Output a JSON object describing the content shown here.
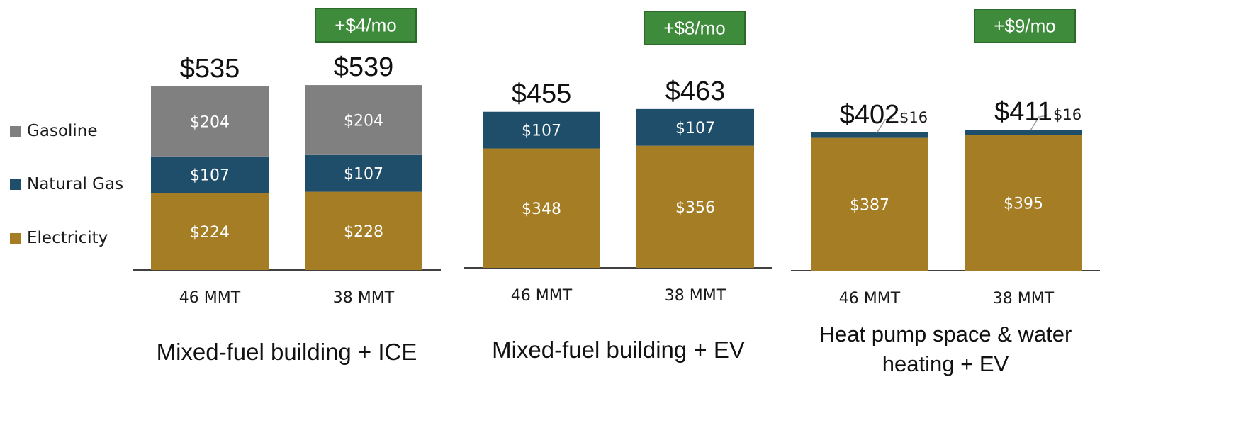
{
  "chart_data": {
    "type": "bar",
    "stacked": true,
    "legend": {
      "placement": "left",
      "items": [
        {
          "name": "Gasoline",
          "color": "#808080"
        },
        {
          "name": "Natural Gas",
          "color": "#1f4e6b"
        },
        {
          "name": "Electricity",
          "color": "#a57d24"
        }
      ]
    },
    "groups": [
      {
        "title": "Mixed-fuel building + ICE",
        "badge": "+$4/mo",
        "bars": [
          {
            "category": "46 MMT",
            "total_label": "$535",
            "segments": [
              {
                "series": "Electricity",
                "value": 224,
                "label": "$224"
              },
              {
                "series": "Natural Gas",
                "value": 107,
                "label": "$107"
              },
              {
                "series": "Gasoline",
                "value": 204,
                "label": "$204"
              }
            ]
          },
          {
            "category": "38 MMT",
            "total_label": "$539",
            "segments": [
              {
                "series": "Electricity",
                "value": 228,
                "label": "$228"
              },
              {
                "series": "Natural Gas",
                "value": 107,
                "label": "$107"
              },
              {
                "series": "Gasoline",
                "value": 204,
                "label": "$204"
              }
            ]
          }
        ]
      },
      {
        "title": "Mixed-fuel building + EV",
        "badge": "+$8/mo",
        "bars": [
          {
            "category": "46 MMT",
            "total_label": "$455",
            "segments": [
              {
                "series": "Electricity",
                "value": 348,
                "label": "$348"
              },
              {
                "series": "Natural Gas",
                "value": 107,
                "label": "$107"
              }
            ]
          },
          {
            "category": "38 MMT",
            "total_label": "$463",
            "segments": [
              {
                "series": "Electricity",
                "value": 356,
                "label": "$356"
              },
              {
                "series": "Natural Gas",
                "value": 107,
                "label": "$107"
              }
            ]
          }
        ]
      },
      {
        "title": "Heat pump space & water heating + EV",
        "badge": "+$9/mo",
        "bars": [
          {
            "category": "46 MMT",
            "total_label": "$402",
            "segments": [
              {
                "series": "Electricity",
                "value": 387,
                "label": "$387"
              },
              {
                "series": "Natural Gas",
                "value": 16,
                "label": "$16",
                "callout": true
              }
            ]
          },
          {
            "category": "38 MMT",
            "total_label": "$411",
            "segments": [
              {
                "series": "Electricity",
                "value": 395,
                "label": "$395"
              },
              {
                "series": "Natural Gas",
                "value": 16,
                "label": "$16",
                "callout": true
              }
            ]
          }
        ]
      }
    ],
    "colors": {
      "badge_fill": "#3e8c3b",
      "badge_border": "#2b6a2a",
      "badge_text": "#ffffff",
      "segment_label_text": "#ffffff",
      "axis_line": "#404040"
    }
  }
}
